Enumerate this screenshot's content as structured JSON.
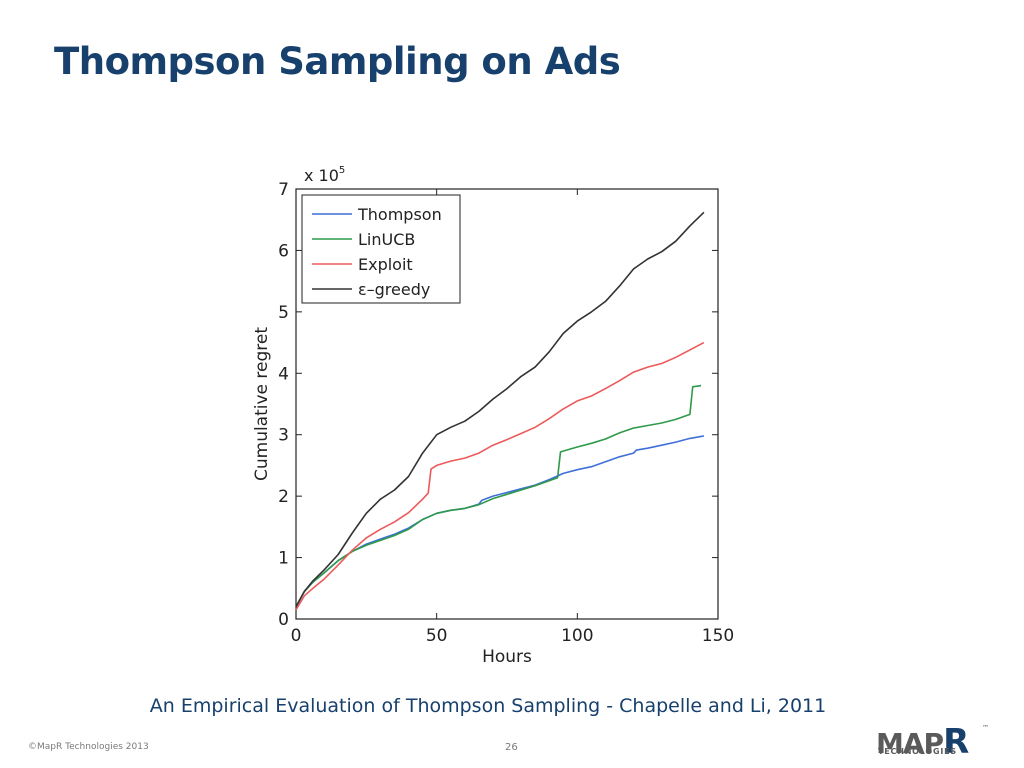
{
  "slide": {
    "title": "Thompson Sampling on Ads",
    "citation": "An Empirical Evaluation of Thompson Sampling - Chapelle and Li, 2011",
    "copyright": "©MapR Technologies 2013",
    "page_number": "26",
    "logo": {
      "main": "MAP",
      "r": "R",
      "tm": "™",
      "sub": "TECHNOLOGIES"
    }
  },
  "colors": {
    "title": "#17406d",
    "thompson": "#3f6fd8",
    "linucb": "#2e9a4a",
    "exploit": "#ec5a5a",
    "egreedy": "#333333"
  },
  "chart_data": {
    "type": "line",
    "xlabel": "Hours",
    "ylabel": "Cumulative regret",
    "y_multiplier_text": "x 10",
    "y_multiplier_exp": "5",
    "xlim": [
      0,
      150
    ],
    "ylim": [
      0,
      7
    ],
    "xticks": [
      "0",
      "50",
      "100",
      "150"
    ],
    "yticks": [
      "0",
      "1",
      "2",
      "3",
      "4",
      "5",
      "6",
      "7"
    ],
    "grid": false,
    "legend_position": "top-left",
    "series": [
      {
        "name": "Thompson",
        "color": "#3f6fd8",
        "points": [
          [
            0,
            0.2
          ],
          [
            3,
            0.45
          ],
          [
            6,
            0.6
          ],
          [
            10,
            0.75
          ],
          [
            15,
            0.95
          ],
          [
            20,
            1.1
          ],
          [
            25,
            1.22
          ],
          [
            30,
            1.3
          ],
          [
            35,
            1.38
          ],
          [
            40,
            1.48
          ],
          [
            45,
            1.62
          ],
          [
            50,
            1.72
          ],
          [
            55,
            1.77
          ],
          [
            60,
            1.8
          ],
          [
            65,
            1.87
          ],
          [
            66,
            1.93
          ],
          [
            70,
            2.0
          ],
          [
            75,
            2.06
          ],
          [
            80,
            2.12
          ],
          [
            85,
            2.18
          ],
          [
            90,
            2.27
          ],
          [
            95,
            2.37
          ],
          [
            100,
            2.43
          ],
          [
            105,
            2.48
          ],
          [
            110,
            2.56
          ],
          [
            115,
            2.64
          ],
          [
            120,
            2.7
          ],
          [
            121,
            2.75
          ],
          [
            125,
            2.78
          ],
          [
            130,
            2.83
          ],
          [
            135,
            2.88
          ],
          [
            140,
            2.94
          ],
          [
            145,
            2.98
          ]
        ]
      },
      {
        "name": "LinUCB",
        "color": "#2e9a4a",
        "points": [
          [
            0,
            0.2
          ],
          [
            3,
            0.45
          ],
          [
            6,
            0.6
          ],
          [
            10,
            0.75
          ],
          [
            15,
            0.95
          ],
          [
            20,
            1.1
          ],
          [
            25,
            1.2
          ],
          [
            30,
            1.28
          ],
          [
            35,
            1.36
          ],
          [
            40,
            1.46
          ],
          [
            45,
            1.62
          ],
          [
            50,
            1.72
          ],
          [
            55,
            1.77
          ],
          [
            60,
            1.8
          ],
          [
            65,
            1.86
          ],
          [
            70,
            1.96
          ],
          [
            75,
            2.03
          ],
          [
            80,
            2.1
          ],
          [
            85,
            2.17
          ],
          [
            90,
            2.25
          ],
          [
            93,
            2.3
          ],
          [
            94,
            2.72
          ],
          [
            100,
            2.8
          ],
          [
            105,
            2.86
          ],
          [
            110,
            2.93
          ],
          [
            115,
            3.03
          ],
          [
            120,
            3.11
          ],
          [
            125,
            3.15
          ],
          [
            130,
            3.19
          ],
          [
            135,
            3.25
          ],
          [
            140,
            3.33
          ],
          [
            141,
            3.78
          ],
          [
            144,
            3.8
          ]
        ]
      },
      {
        "name": "Exploit",
        "color": "#ec5a5a",
        "points": [
          [
            0,
            0.15
          ],
          [
            3,
            0.38
          ],
          [
            6,
            0.5
          ],
          [
            10,
            0.65
          ],
          [
            15,
            0.88
          ],
          [
            20,
            1.12
          ],
          [
            25,
            1.32
          ],
          [
            30,
            1.46
          ],
          [
            35,
            1.58
          ],
          [
            40,
            1.73
          ],
          [
            45,
            1.95
          ],
          [
            47,
            2.05
          ],
          [
            48,
            2.44
          ],
          [
            50,
            2.5
          ],
          [
            55,
            2.57
          ],
          [
            60,
            2.62
          ],
          [
            65,
            2.7
          ],
          [
            70,
            2.83
          ],
          [
            75,
            2.92
          ],
          [
            80,
            3.02
          ],
          [
            85,
            3.12
          ],
          [
            90,
            3.26
          ],
          [
            95,
            3.42
          ],
          [
            100,
            3.55
          ],
          [
            105,
            3.63
          ],
          [
            110,
            3.75
          ],
          [
            115,
            3.88
          ],
          [
            120,
            4.02
          ],
          [
            125,
            4.1
          ],
          [
            130,
            4.16
          ],
          [
            135,
            4.26
          ],
          [
            140,
            4.38
          ],
          [
            145,
            4.5
          ]
        ]
      },
      {
        "name": "ε–greedy",
        "color": "#333333",
        "points": [
          [
            0,
            0.2
          ],
          [
            3,
            0.45
          ],
          [
            6,
            0.62
          ],
          [
            10,
            0.8
          ],
          [
            15,
            1.05
          ],
          [
            20,
            1.4
          ],
          [
            25,
            1.72
          ],
          [
            30,
            1.95
          ],
          [
            35,
            2.1
          ],
          [
            40,
            2.32
          ],
          [
            45,
            2.7
          ],
          [
            50,
            3.0
          ],
          [
            55,
            3.12
          ],
          [
            60,
            3.22
          ],
          [
            65,
            3.38
          ],
          [
            70,
            3.58
          ],
          [
            75,
            3.75
          ],
          [
            80,
            3.95
          ],
          [
            85,
            4.1
          ],
          [
            90,
            4.35
          ],
          [
            95,
            4.65
          ],
          [
            100,
            4.85
          ],
          [
            105,
            5.0
          ],
          [
            110,
            5.17
          ],
          [
            115,
            5.42
          ],
          [
            120,
            5.7
          ],
          [
            125,
            5.86
          ],
          [
            130,
            5.98
          ],
          [
            135,
            6.15
          ],
          [
            140,
            6.4
          ],
          [
            145,
            6.62
          ]
        ]
      }
    ]
  }
}
